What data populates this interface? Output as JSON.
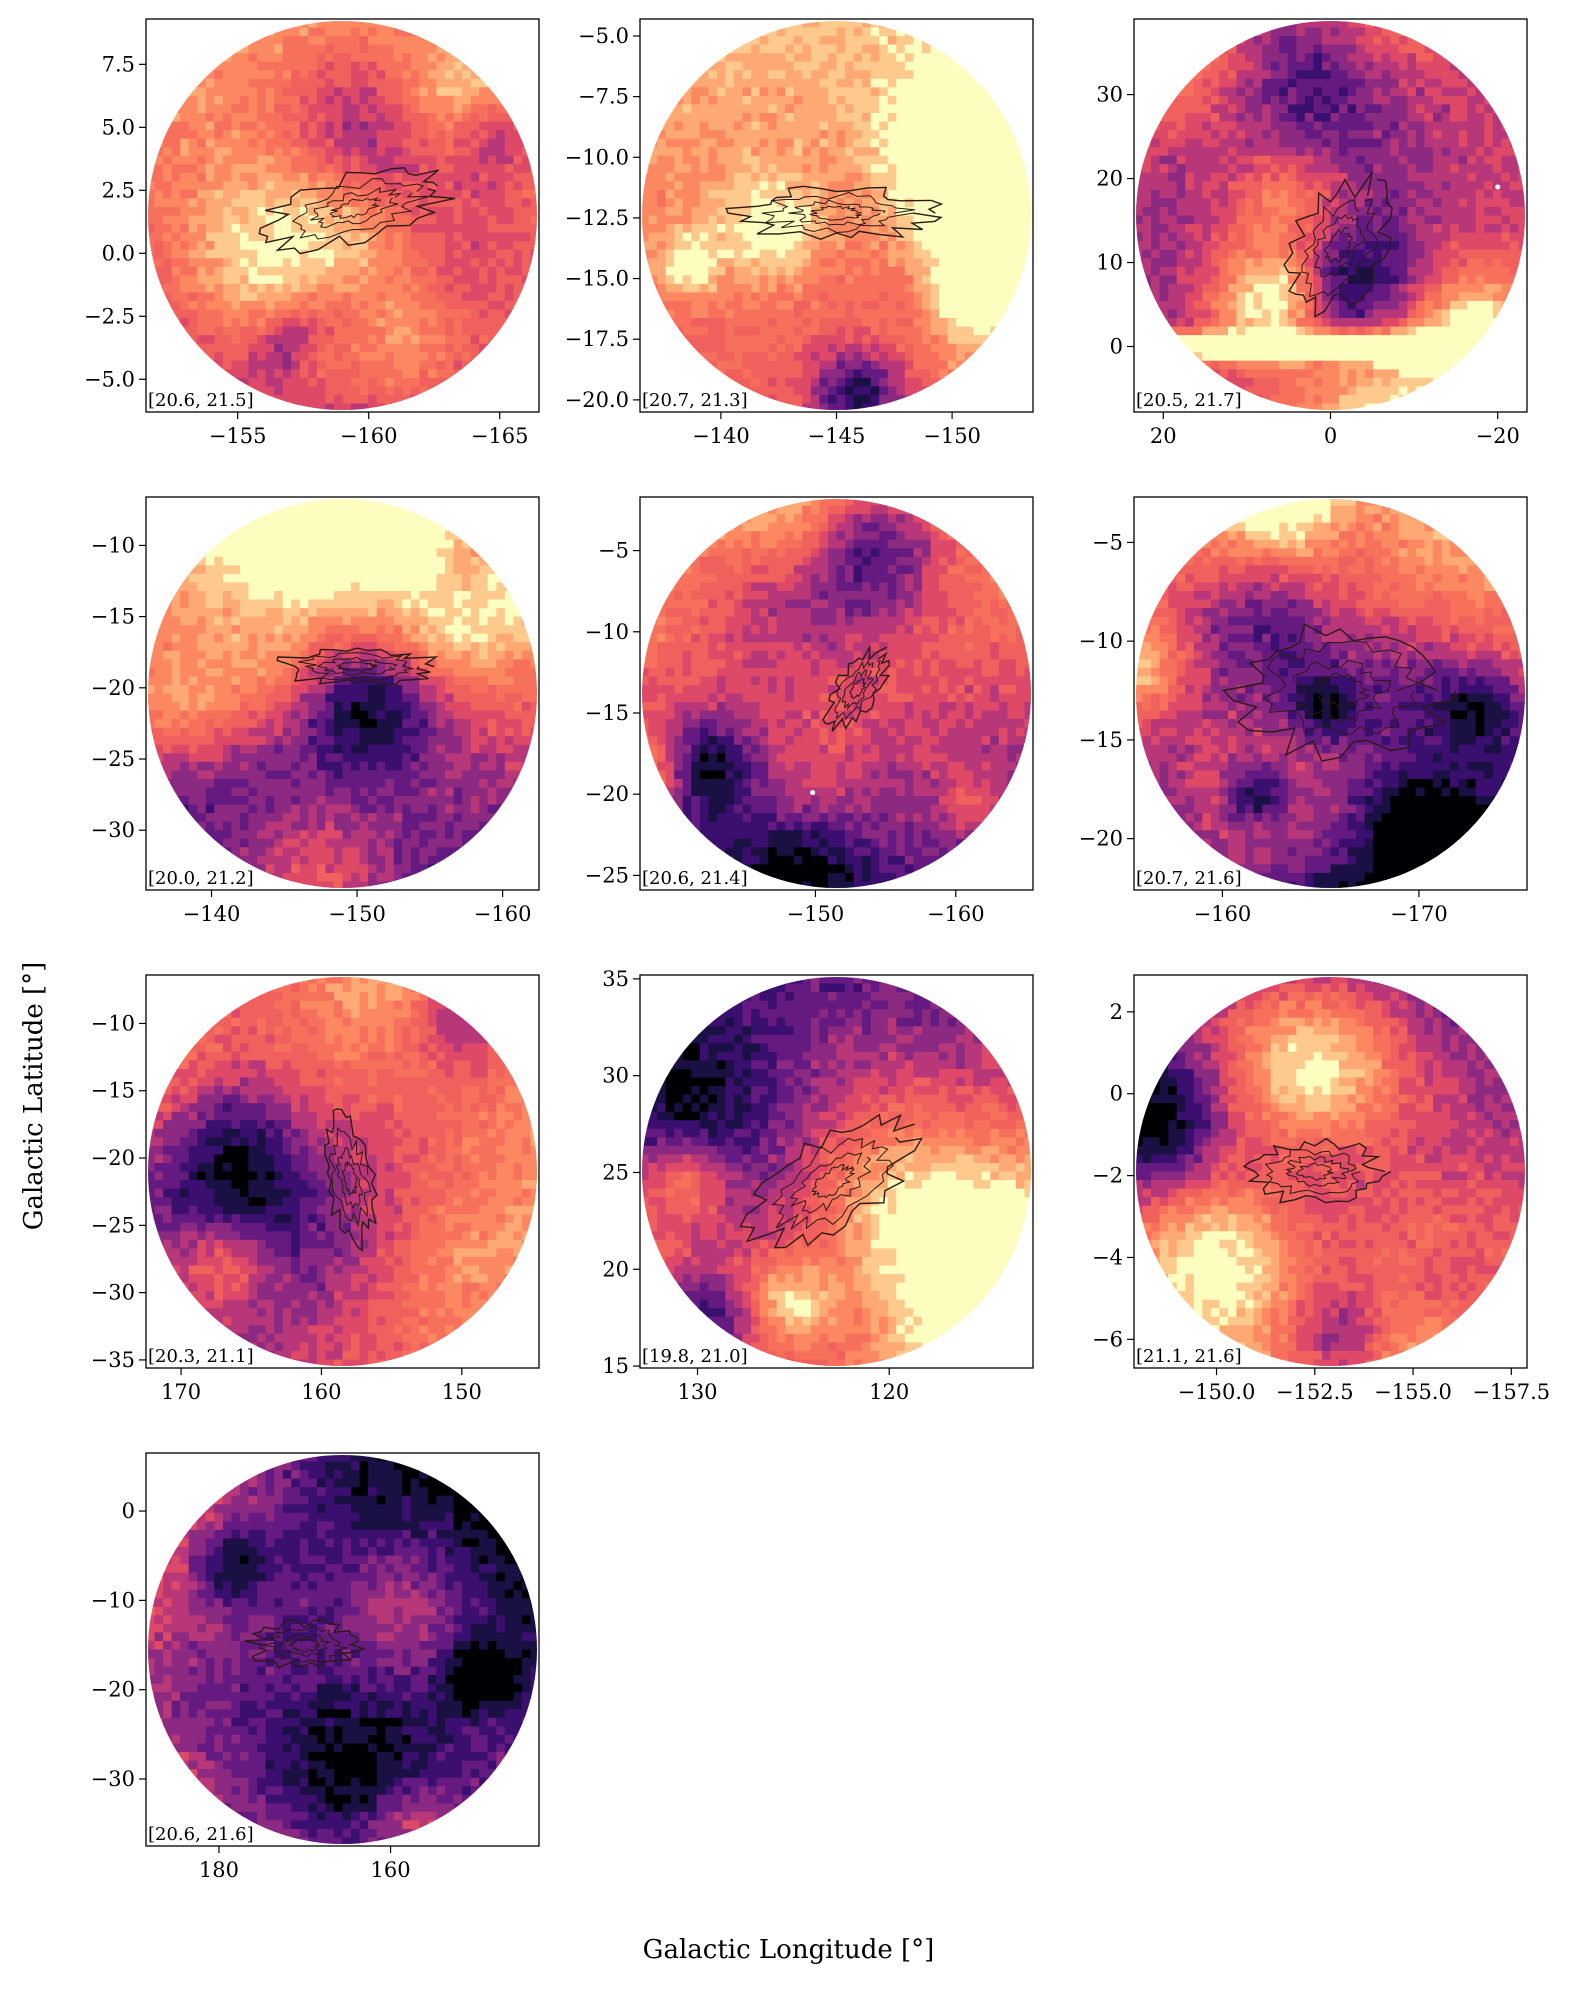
{
  "figure": {
    "xlabel": "Galactic Longitude [°]",
    "ylabel": "Galactic Latitude [°]"
  },
  "colormap": [
    "#000004",
    "#1b1044",
    "#3b0f70",
    "#641a80",
    "#8c2981",
    "#b73779",
    "#de4968",
    "#f0605d",
    "#f7705c",
    "#fb8861",
    "#fea973",
    "#fec98d",
    "#fcfdbf"
  ],
  "contour_color": "#2a1a14",
  "chart_data": [
    {
      "type": "heatmap",
      "label": "[20.6, 21.5]",
      "xticks": [
        -155,
        -160,
        -165
      ],
      "yticks": [
        7.5,
        5.0,
        2.5,
        0.0,
        -2.5,
        -5.0
      ],
      "xlim": [
        -151.5,
        -166.5
      ],
      "ylim": [
        -6.3,
        9.3
      ],
      "seed": 11,
      "bright": 0.6,
      "grad": [
        0.05,
        -0.5
      ],
      "cloud": {
        "x": -159.5,
        "y": 1.8,
        "sx": 3.5,
        "sy": 1.2,
        "rot": -15
      },
      "sources": []
    },
    {
      "type": "heatmap",
      "label": "[20.7, 21.3]",
      "xticks": [
        -140,
        -145,
        -150
      ],
      "yticks": [
        -5.0,
        -7.5,
        -10.0,
        -12.5,
        -15.0,
        -17.5,
        -20.0
      ],
      "xlim": [
        -136.5,
        -153.5
      ],
      "ylim": [
        -20.5,
        -4.3
      ],
      "seed": 23,
      "bright": 0.72,
      "grad": [
        0,
        -0.3
      ],
      "cloud": {
        "x": -145,
        "y": -12.3,
        "sx": 4.0,
        "sy": 1.0,
        "rot": 0
      },
      "sources": []
    },
    {
      "type": "heatmap",
      "label": "[20.5, 21.7]",
      "xticks": [
        20,
        0,
        -20
      ],
      "yticks": [
        30,
        20,
        10,
        0
      ],
      "xlim": [
        23.5,
        -23.5
      ],
      "ylim": [
        -7.8,
        39.0
      ],
      "seed": 37,
      "bright": 0.4,
      "grad": [
        0,
        -0.2
      ],
      "cloud": {
        "x": -1,
        "y": 12,
        "sx": 8,
        "sy": 5,
        "rot": -60
      },
      "plane": 0,
      "sources": [
        [
          -20,
          19
        ]
      ]
    },
    {
      "type": "heatmap",
      "label": "[20.0, 21.2]",
      "xticks": [
        -140,
        -150,
        -160
      ],
      "yticks": [
        -10,
        -15,
        -20,
        -25,
        -30
      ],
      "xlim": [
        -135.5,
        -162.5
      ],
      "ylim": [
        -34.2,
        -6.6
      ],
      "seed": 41,
      "bright": 0.55,
      "grad": [
        0,
        -0.7
      ],
      "cloud": {
        "x": -150,
        "y": -18.5,
        "sx": 5,
        "sy": 1.2,
        "rot": 0
      },
      "sources": []
    },
    {
      "type": "heatmap",
      "label": "[20.6, 21.4]",
      "xticks": [
        -150,
        -160
      ],
      "yticks": [
        -5,
        -10,
        -15,
        -20,
        -25
      ],
      "xlim": [
        -137.5,
        -165.5
      ],
      "ylim": [
        -25.9,
        -1.7
      ],
      "seed": 53,
      "bright": 0.55,
      "grad": [
        0,
        -0.65
      ],
      "cloud": {
        "x": -153,
        "y": -13.5,
        "sx": 3,
        "sy": 1.2,
        "rot": -55
      },
      "sources": [
        [
          -149.8,
          -19.9
        ]
      ]
    },
    {
      "type": "heatmap",
      "label": "[20.7, 21.6]",
      "xticks": [
        -160,
        -170
      ],
      "yticks": [
        -5,
        -10,
        -15,
        -20
      ],
      "xlim": [
        -155.5,
        -175.5
      ],
      "ylim": [
        -22.6,
        -2.7
      ],
      "seed": 67,
      "bright": 0.5,
      "grad": [
        0,
        -0.75
      ],
      "cloud": {
        "x": -166,
        "y": -12.5,
        "sx": 5,
        "sy": 3,
        "rot": 0
      },
      "sources": []
    },
    {
      "type": "heatmap",
      "label": "[20.3, 21.1]",
      "xticks": [
        170,
        160,
        150
      ],
      "yticks": [
        -10,
        -15,
        -20,
        -25,
        -30,
        -35
      ],
      "xlim": [
        172.5,
        144.5
      ],
      "ylim": [
        -35.6,
        -6.4
      ],
      "seed": 79,
      "bright": 0.55,
      "grad": [
        0.4,
        0
      ],
      "cloud": {
        "x": 158,
        "y": -21.5,
        "sx": 1.6,
        "sy": 4.5,
        "rot": -10
      },
      "sources": []
    },
    {
      "type": "heatmap",
      "label": "[19.8, 21.0]",
      "xticks": [
        130,
        120
      ],
      "yticks": [
        35,
        30,
        25,
        20,
        15
      ],
      "xlim": [
        133.0,
        112.5
      ],
      "ylim": [
        14.9,
        35.2
      ],
      "seed": 89,
      "bright": 0.6,
      "grad": [
        0,
        0.6
      ],
      "cloud": {
        "x": 123,
        "y": 24.5,
        "sx": 4.5,
        "sy": 2.2,
        "rot": -35
      },
      "sources": []
    },
    {
      "type": "heatmap",
      "label": "[21.1, 21.6]",
      "xticks": [
        -150.0,
        -152.5,
        -155.0,
        -157.5
      ],
      "yticks": [
        2,
        0,
        -2,
        -4,
        -6
      ],
      "xlim": [
        -147.9,
        -157.9
      ],
      "ylim": [
        -6.7,
        2.9
      ],
      "seed": 97,
      "bright": 0.45,
      "grad": [
        0,
        0.4
      ],
      "cloud": {
        "x": -152.5,
        "y": -1.9,
        "sx": 1.6,
        "sy": 0.7,
        "rot": 0
      },
      "sources": []
    },
    {
      "type": "heatmap",
      "label": "[20.6, 21.6]",
      "xticks": [
        180,
        160
      ],
      "yticks": [
        0,
        -10,
        -20,
        -30
      ],
      "xlim": [
        188.5,
        142.7
      ],
      "ylim": [
        -37.5,
        6.5
      ],
      "seed": 101,
      "bright": 0.45,
      "grad": [
        -0.6,
        0.4
      ],
      "cloud": {
        "x": 170,
        "y": -15,
        "sx": 6,
        "sy": 2.5,
        "rot": 0
      },
      "sources": []
    }
  ]
}
